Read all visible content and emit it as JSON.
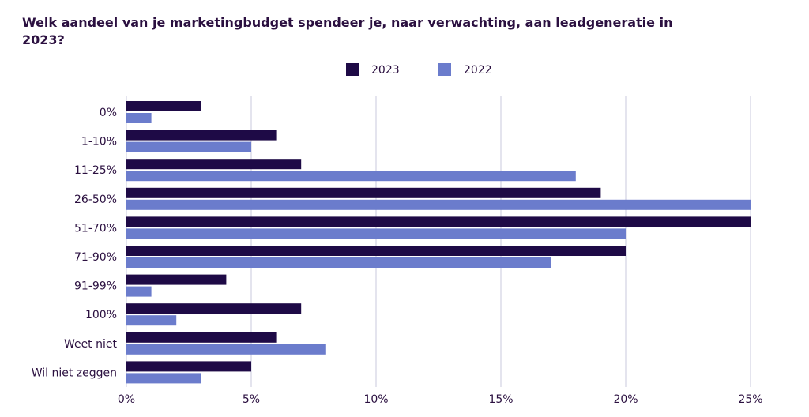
{
  "chart_data": {
    "type": "bar",
    "orientation": "horizontal",
    "title": "Welk aandeel van je marketingbudget spendeer je, naar verwachting, aan leadgeneratie in 2023?",
    "categories": [
      "0%",
      "1-10%",
      "11-25%",
      "26-50%",
      "51-70%",
      "71-90%",
      "91-99%",
      "100%",
      "Weet niet",
      "Wil niet zeggen"
    ],
    "series": [
      {
        "name": "2023",
        "color": "#1e0a46",
        "values": [
          3,
          6,
          7,
          19,
          25,
          20,
          4,
          7,
          6,
          5
        ]
      },
      {
        "name": "2022",
        "color": "#6b7ccc",
        "values": [
          1,
          5,
          18,
          25,
          20,
          17,
          1,
          2,
          8,
          3
        ]
      }
    ],
    "xlim": [
      0,
      25
    ],
    "xticks": [
      0,
      5,
      10,
      15,
      20,
      25
    ],
    "xtick_labels": [
      "0%",
      "5%",
      "10%",
      "15%",
      "20%",
      "25%"
    ],
    "grid": "vertical",
    "legend_position": "top-center"
  }
}
